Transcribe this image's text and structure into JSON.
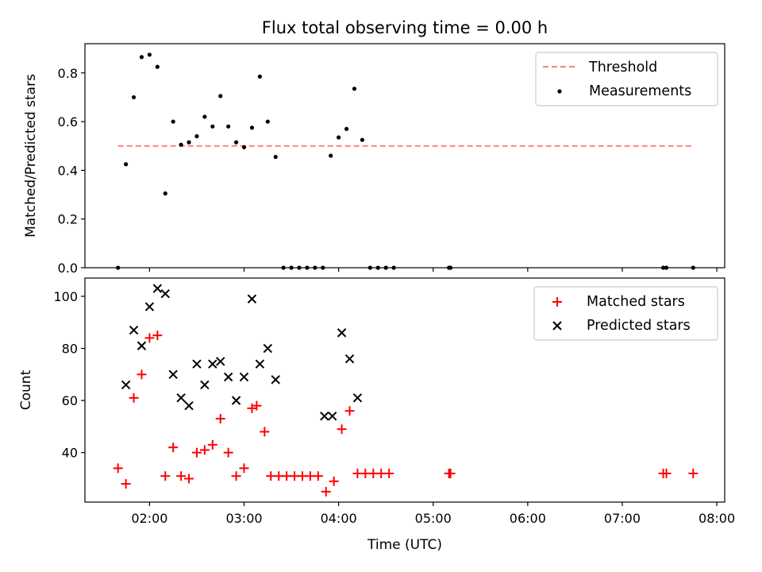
{
  "figure": {
    "title": "Flux total observing time = 0.00 h"
  },
  "chart_data": [
    {
      "type": "scatter",
      "ylabel": "Matched/Predicted stars",
      "xlim": [
        "01:19",
        "08:05"
      ],
      "ylim": [
        0,
        0.92
      ],
      "yticks": [
        0,
        0.2,
        0.4,
        0.6,
        0.8
      ],
      "ytick_labels": [
        "0.0",
        "0.2",
        "0.4",
        "0.6",
        "0.8"
      ],
      "legend": {
        "position": "top-right",
        "entries": [
          {
            "label": "Threshold",
            "style": "dashed-line"
          },
          {
            "label": "Measurements",
            "style": "dot"
          }
        ]
      },
      "threshold": {
        "name": "Threshold",
        "value": 0.5,
        "x_range": [
          "01:40",
          "07:45"
        ],
        "color": "#ff7f7f"
      },
      "series": [
        {
          "name": "Measurements",
          "color": "#000000",
          "marker": "dot",
          "x": [
            "01:40",
            "01:45",
            "01:50",
            "01:55",
            "02:00",
            "02:05",
            "02:10",
            "02:15",
            "02:20",
            "02:25",
            "02:30",
            "02:35",
            "02:40",
            "02:45",
            "02:50",
            "02:55",
            "03:00",
            "03:05",
            "03:10",
            "03:15",
            "03:20",
            "03:25",
            "03:30",
            "03:35",
            "03:40",
            "03:45",
            "03:50",
            "03:55",
            "04:00",
            "04:05",
            "04:10",
            "04:15",
            "04:20",
            "04:25",
            "04:30",
            "04:35",
            "05:10",
            "05:11",
            "07:26",
            "07:28",
            "07:45"
          ],
          "y": [
            0,
            0.425,
            0.7,
            0.865,
            0.875,
            0.825,
            0.305,
            0.6,
            0.505,
            0.515,
            0.54,
            0.62,
            0.58,
            0.705,
            0.58,
            0.515,
            0.495,
            0.575,
            0.785,
            0.6,
            0.455,
            0,
            0,
            0,
            0,
            0,
            0,
            0.46,
            0.535,
            0.57,
            0.735,
            0.525,
            0,
            0,
            0,
            0,
            0,
            0,
            0,
            0,
            0
          ]
        }
      ]
    },
    {
      "type": "scatter",
      "xlabel": "Time (UTC)",
      "ylabel": "Count",
      "xlim": [
        "01:19",
        "08:05"
      ],
      "ylim": [
        21,
        107
      ],
      "xticks": [
        "02:00",
        "03:00",
        "04:00",
        "05:00",
        "06:00",
        "07:00",
        "08:00"
      ],
      "yticks": [
        40,
        60,
        80,
        100
      ],
      "ytick_labels": [
        "40",
        "60",
        "80",
        "100"
      ],
      "legend": {
        "position": "top-right",
        "entries": [
          {
            "label": "Matched stars",
            "style": "plus"
          },
          {
            "label": "Predicted stars",
            "style": "x"
          }
        ]
      },
      "series": [
        {
          "name": "Matched stars",
          "color": "#ff0000",
          "marker": "plus",
          "x": [
            "01:40",
            "01:45",
            "01:50",
            "01:55",
            "02:00",
            "02:05",
            "02:10",
            "02:15",
            "02:20",
            "02:25",
            "02:30",
            "02:35",
            "02:40",
            "02:45",
            "02:50",
            "02:55",
            "03:00",
            "03:05",
            "03:08",
            "03:13",
            "03:17",
            "03:22",
            "03:27",
            "03:32",
            "03:37",
            "03:42",
            "03:47",
            "03:52",
            "03:57",
            "04:02",
            "04:07",
            "04:12",
            "04:17",
            "04:22",
            "04:27",
            "04:32",
            "05:10",
            "05:11",
            "07:26",
            "07:28",
            "07:45"
          ],
          "y": [
            34,
            28,
            61,
            70,
            84,
            85,
            31,
            42,
            31,
            30,
            40,
            41,
            43,
            53,
            40,
            31,
            34,
            57,
            58,
            48,
            31,
            31,
            31,
            31,
            31,
            31,
            31,
            25,
            29,
            49,
            56,
            32,
            32,
            32,
            32,
            32,
            32,
            32,
            32,
            32,
            32
          ]
        },
        {
          "name": "Predicted stars",
          "color": "#000000",
          "marker": "x",
          "x": [
            "01:45",
            "01:50",
            "01:55",
            "02:00",
            "02:05",
            "02:10",
            "02:15",
            "02:20",
            "02:25",
            "02:30",
            "02:35",
            "02:40",
            "02:45",
            "02:50",
            "02:55",
            "03:00",
            "03:05",
            "03:10",
            "03:15",
            "03:20",
            "03:51",
            "03:56",
            "04:02",
            "04:07",
            "04:12"
          ],
          "y": [
            66,
            87,
            81,
            96,
            103,
            101,
            70,
            61,
            58,
            74,
            66,
            74,
            75,
            69,
            60,
            69,
            99,
            74,
            80,
            68,
            54,
            54,
            86,
            76,
            61
          ]
        }
      ]
    }
  ]
}
